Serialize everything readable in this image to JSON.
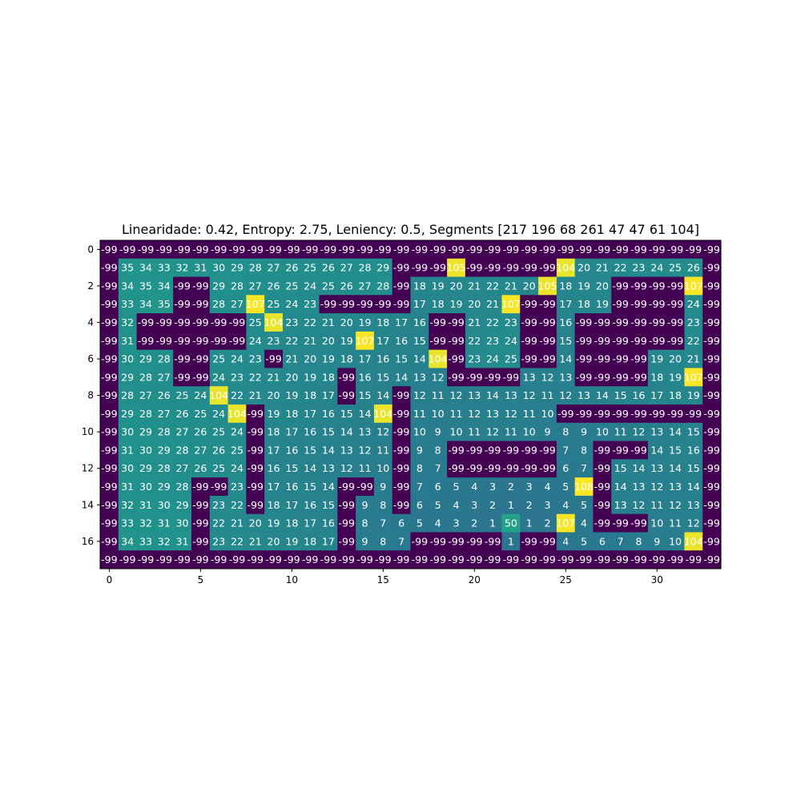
{
  "chart_data": {
    "type": "heatmap",
    "title": "Linearidade: 0.42, Entropy: 2.75, Leniency: 0.5, Segments [217 196  68 261  47  47  61 104]",
    "xlabel": "",
    "ylabel": "",
    "x_ticks": [
      0,
      5,
      10,
      15,
      20,
      25,
      30
    ],
    "y_ticks": [
      0,
      2,
      4,
      6,
      8,
      10,
      12,
      14,
      16
    ],
    "x_range": [
      0,
      33
    ],
    "y_range": [
      0,
      17
    ],
    "colormap": "viridis",
    "value_range": [
      -99,
      108
    ],
    "grid": false,
    "annotations": true,
    "rows": [
      [
        -99,
        -99,
        -99,
        -99,
        -99,
        -99,
        -99,
        -99,
        -99,
        -99,
        -99,
        -99,
        -99,
        -99,
        -99,
        -99,
        -99,
        -99,
        -99,
        -99,
        -99,
        -99,
        -99,
        -99,
        -99,
        -99,
        -99,
        -99,
        -99,
        -99,
        -99,
        -99,
        -99,
        -99
      ],
      [
        -99,
        35,
        34,
        33,
        32,
        31,
        30,
        29,
        28,
        27,
        26,
        25,
        26,
        27,
        28,
        29,
        -99,
        -99,
        -99,
        105,
        -99,
        -99,
        -99,
        -99,
        -99,
        104,
        20,
        21,
        22,
        23,
        24,
        25,
        26,
        -99
      ],
      [
        -99,
        34,
        35,
        34,
        -99,
        -99,
        29,
        28,
        27,
        26,
        25,
        24,
        25,
        26,
        27,
        28,
        -99,
        18,
        19,
        20,
        21,
        22,
        21,
        20,
        105,
        18,
        19,
        20,
        -99,
        -99,
        -99,
        -99,
        107,
        -99
      ],
      [
        -99,
        33,
        34,
        35,
        -99,
        -99,
        28,
        27,
        107,
        25,
        24,
        23,
        -99,
        -99,
        -99,
        -99,
        -99,
        17,
        18,
        19,
        20,
        21,
        107,
        -99,
        -99,
        17,
        18,
        19,
        -99,
        -99,
        -99,
        -99,
        24,
        -99
      ],
      [
        -99,
        32,
        -99,
        -99,
        -99,
        -99,
        -99,
        -99,
        25,
        104,
        23,
        22,
        21,
        20,
        19,
        18,
        17,
        16,
        -99,
        -99,
        21,
        22,
        23,
        -99,
        -99,
        16,
        -99,
        -99,
        -99,
        -99,
        -99,
        -99,
        23,
        -99
      ],
      [
        -99,
        31,
        -99,
        -99,
        -99,
        -99,
        -99,
        -99,
        24,
        23,
        22,
        21,
        20,
        19,
        107,
        17,
        16,
        15,
        -99,
        -99,
        22,
        23,
        24,
        -99,
        -99,
        15,
        -99,
        -99,
        -99,
        -99,
        -99,
        -99,
        22,
        -99
      ],
      [
        -99,
        30,
        29,
        28,
        -99,
        -99,
        25,
        24,
        23,
        -99,
        21,
        20,
        19,
        18,
        17,
        16,
        15,
        14,
        104,
        -99,
        23,
        24,
        25,
        -99,
        -99,
        14,
        -99,
        -99,
        -99,
        -99,
        19,
        20,
        21,
        -99
      ],
      [
        -99,
        29,
        28,
        27,
        -99,
        -99,
        24,
        23,
        22,
        21,
        20,
        19,
        18,
        -99,
        16,
        15,
        14,
        13,
        12,
        -99,
        -99,
        -99,
        -99,
        13,
        12,
        13,
        -99,
        -99,
        -99,
        -99,
        18,
        19,
        107,
        -99
      ],
      [
        -99,
        28,
        27,
        26,
        25,
        24,
        104,
        22,
        21,
        20,
        19,
        18,
        17,
        -99,
        15,
        14,
        -99,
        12,
        11,
        12,
        13,
        14,
        13,
        12,
        11,
        12,
        13,
        14,
        15,
        16,
        17,
        18,
        19,
        -99
      ],
      [
        -99,
        29,
        28,
        27,
        26,
        25,
        24,
        104,
        -99,
        19,
        18,
        17,
        16,
        15,
        14,
        104,
        -99,
        11,
        10,
        11,
        12,
        13,
        12,
        11,
        10,
        -99,
        -99,
        -99,
        -99,
        -99,
        -99,
        -99,
        -99,
        -99
      ],
      [
        -99,
        30,
        29,
        28,
        27,
        26,
        25,
        24,
        -99,
        18,
        17,
        16,
        15,
        14,
        13,
        12,
        -99,
        10,
        9,
        10,
        11,
        12,
        11,
        10,
        9,
        8,
        9,
        10,
        11,
        12,
        13,
        14,
        15,
        -99
      ],
      [
        -99,
        31,
        30,
        29,
        28,
        27,
        26,
        25,
        -99,
        17,
        16,
        15,
        14,
        13,
        12,
        11,
        -99,
        9,
        8,
        -99,
        -99,
        -99,
        -99,
        -99,
        -99,
        7,
        8,
        -99,
        -99,
        -99,
        14,
        15,
        16,
        -99
      ],
      [
        -99,
        30,
        29,
        28,
        27,
        26,
        25,
        24,
        -99,
        16,
        15,
        14,
        13,
        12,
        11,
        10,
        -99,
        8,
        7,
        -99,
        -99,
        -99,
        -99,
        -99,
        -99,
        6,
        7,
        -99,
        15,
        14,
        13,
        14,
        15,
        -99
      ],
      [
        -99,
        31,
        30,
        29,
        28,
        -99,
        -99,
        23,
        -99,
        17,
        16,
        15,
        14,
        -99,
        -99,
        9,
        -99,
        7,
        6,
        5,
        4,
        3,
        2,
        3,
        4,
        5,
        108,
        -99,
        14,
        13,
        12,
        13,
        14,
        -99
      ],
      [
        -99,
        32,
        31,
        30,
        29,
        -99,
        23,
        22,
        -99,
        18,
        17,
        16,
        15,
        -99,
        9,
        8,
        -99,
        6,
        5,
        4,
        3,
        2,
        1,
        2,
        3,
        4,
        5,
        -99,
        13,
        12,
        11,
        12,
        13,
        -99
      ],
      [
        -99,
        33,
        32,
        31,
        30,
        -99,
        22,
        21,
        20,
        19,
        18,
        17,
        16,
        -99,
        8,
        7,
        6,
        5,
        4,
        3,
        2,
        1,
        50,
        1,
        2,
        107,
        4,
        -99,
        -99,
        -99,
        10,
        11,
        12,
        -99
      ],
      [
        -99,
        34,
        33,
        32,
        31,
        -99,
        23,
        22,
        21,
        20,
        19,
        18,
        17,
        -99,
        9,
        8,
        7,
        -99,
        -99,
        -99,
        -99,
        -99,
        1,
        -99,
        -99,
        4,
        5,
        6,
        7,
        8,
        9,
        10,
        104,
        -99
      ],
      [
        -99,
        -99,
        -99,
        -99,
        -99,
        -99,
        -99,
        -99,
        -99,
        -99,
        -99,
        -99,
        -99,
        -99,
        -99,
        -99,
        -99,
        -99,
        -99,
        -99,
        -99,
        -99,
        -99,
        -99,
        -99,
        -99,
        -99,
        -99,
        -99,
        -99,
        -99,
        -99,
        -99,
        -99
      ]
    ]
  }
}
